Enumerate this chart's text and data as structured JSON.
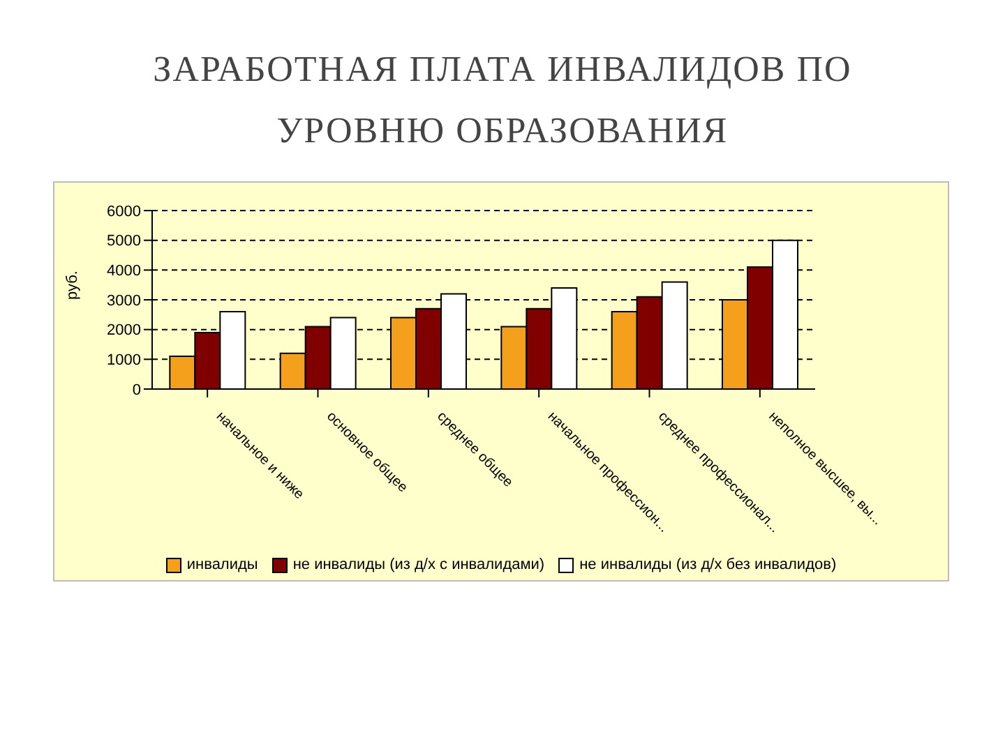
{
  "chart_data": {
    "type": "bar",
    "title": "ЗАРАБОТНАЯ ПЛАТА ИНВАЛИДОВ ПО УРОВНЮ ОБРАЗОВАНИЯ",
    "ylabel": "руб.",
    "categories": [
      "начальное и ниже",
      "основное общее",
      "среднее общее",
      "начальное профессион...",
      "среднее профессионал...",
      "неполное высшее, вы..."
    ],
    "series": [
      {
        "name": "инвалиды",
        "color": "#f4a01c",
        "values": [
          1100,
          1200,
          2400,
          2100,
          2600,
          3000
        ]
      },
      {
        "name": "не инвалиды (из д/х с инвалидами)",
        "color": "#800000",
        "values": [
          1900,
          2100,
          2700,
          2700,
          3100,
          4100
        ]
      },
      {
        "name": "не инвалиды (из д/х без инвалидов)",
        "color": "#ffffff",
        "values": [
          2600,
          2400,
          3200,
          3400,
          3600,
          5000
        ]
      }
    ],
    "ylim": [
      0,
      6000
    ],
    "yticks": [
      0,
      1000,
      2000,
      3000,
      4000,
      5000,
      6000
    ],
    "grid": "y",
    "legend": "bottom"
  }
}
